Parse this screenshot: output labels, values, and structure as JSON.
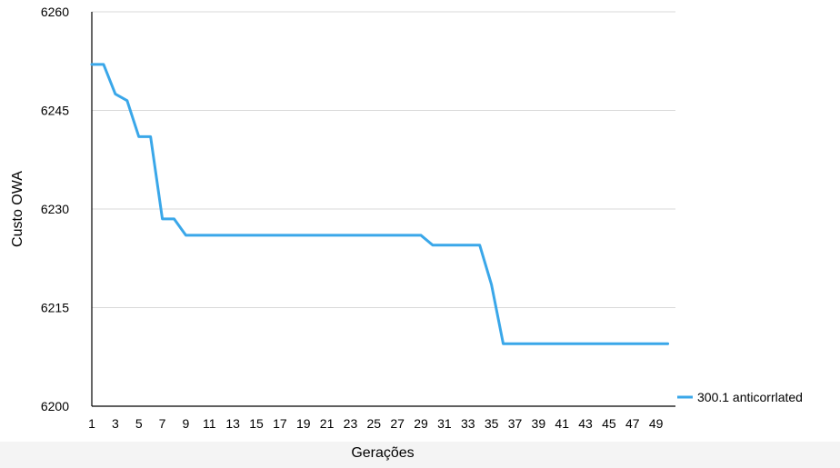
{
  "chart_data": {
    "type": "line",
    "title": "",
    "xlabel": "Gerações",
    "ylabel": "Custo OWA",
    "x": [
      1,
      2,
      3,
      4,
      5,
      6,
      7,
      8,
      9,
      10,
      11,
      12,
      13,
      14,
      15,
      16,
      17,
      18,
      19,
      20,
      21,
      22,
      23,
      24,
      25,
      26,
      27,
      28,
      29,
      30,
      31,
      32,
      33,
      34,
      35,
      36,
      37,
      38,
      39,
      40,
      41,
      42,
      43,
      44,
      45,
      46,
      47,
      48,
      49,
      50
    ],
    "x_tick_labels": [
      "1",
      "3",
      "5",
      "7",
      "9",
      "11",
      "13",
      "15",
      "17",
      "19",
      "21",
      "23",
      "25",
      "27",
      "29",
      "31",
      "33",
      "35",
      "37",
      "39",
      "41",
      "43",
      "45",
      "47",
      "49"
    ],
    "ylim": [
      6200,
      6260
    ],
    "y_ticks": [
      6200,
      6215,
      6230,
      6245,
      6260
    ],
    "grid": true,
    "legend_position": "right",
    "series": [
      {
        "name": "300.1 anticorrlated",
        "color": "#3aa7e9",
        "values": [
          6252,
          6252,
          6247.5,
          6246.5,
          6241,
          6241,
          6228.5,
          6228.5,
          6226,
          6226,
          6226,
          6226,
          6226,
          6226,
          6226,
          6226,
          6226,
          6226,
          6226,
          6226,
          6226,
          6226,
          6226,
          6226,
          6226,
          6226,
          6226,
          6226,
          6226,
          6224.5,
          6224.5,
          6224.5,
          6224.5,
          6224.5,
          6218.5,
          6209.5,
          6209.5,
          6209.5,
          6209.5,
          6209.5,
          6209.5,
          6209.5,
          6209.5,
          6209.5,
          6209.5,
          6209.5,
          6209.5,
          6209.5,
          6209.5,
          6209.5
        ]
      }
    ]
  }
}
